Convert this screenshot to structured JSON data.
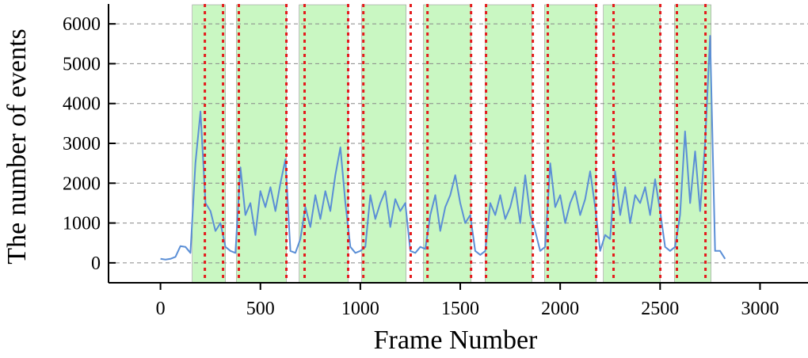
{
  "chart_data": {
    "type": "line",
    "xlabel": "Frame Number",
    "ylabel": "The number of events",
    "x": [
      0,
      25,
      50,
      75,
      100,
      125,
      150,
      175,
      200,
      225,
      250,
      275,
      300,
      325,
      350,
      375,
      400,
      425,
      450,
      475,
      500,
      525,
      550,
      575,
      600,
      625,
      650,
      675,
      700,
      725,
      750,
      775,
      800,
      825,
      850,
      875,
      900,
      925,
      950,
      975,
      1000,
      1025,
      1050,
      1075,
      1100,
      1125,
      1150,
      1175,
      1200,
      1225,
      1250,
      1275,
      1300,
      1325,
      1350,
      1375,
      1400,
      1425,
      1450,
      1475,
      1500,
      1525,
      1550,
      1575,
      1600,
      1625,
      1650,
      1675,
      1700,
      1725,
      1750,
      1775,
      1800,
      1825,
      1850,
      1875,
      1900,
      1925,
      1950,
      1975,
      2000,
      2025,
      2050,
      2075,
      2100,
      2125,
      2150,
      2175,
      2200,
      2225,
      2250,
      2275,
      2300,
      2325,
      2350,
      2375,
      2400,
      2425,
      2450,
      2475,
      2500,
      2525,
      2550,
      2575,
      2600,
      2625,
      2650,
      2675,
      2700,
      2725,
      2750,
      2775,
      2800,
      2825
    ],
    "values": [
      100,
      80,
      100,
      150,
      420,
      400,
      250,
      2500,
      3800,
      1500,
      1300,
      800,
      1000,
      400,
      300,
      250,
      2400,
      1200,
      1500,
      700,
      1800,
      1400,
      1900,
      1300,
      2000,
      2600,
      300,
      250,
      600,
      1400,
      900,
      1700,
      1100,
      1800,
      1300,
      2200,
      2900,
      1500,
      400,
      250,
      300,
      400,
      1700,
      1100,
      1500,
      1800,
      900,
      1600,
      1300,
      1500,
      300,
      250,
      400,
      350,
      1200,
      1700,
      800,
      1400,
      1700,
      2200,
      1500,
      1000,
      1200,
      300,
      200,
      300,
      1500,
      1200,
      1700,
      1100,
      1400,
      1900,
      1000,
      2200,
      1200,
      800,
      300,
      400,
      2500,
      1400,
      1700,
      1000,
      1500,
      1800,
      1200,
      1600,
      2300,
      1400,
      300,
      700,
      600,
      2300,
      1200,
      1900,
      1000,
      1700,
      1500,
      1900,
      1200,
      2100,
      1300,
      400,
      300,
      400,
      1200,
      3300,
      1500,
      2800,
      1300,
      3000,
      5700,
      300,
      300,
      100
    ],
    "color": "#5b8fd6",
    "regions": [
      [
        159,
        325
      ],
      [
        380,
        630
      ],
      [
        694,
        939
      ],
      [
        1007,
        1229
      ],
      [
        1316,
        1554
      ],
      [
        1625,
        1859
      ],
      [
        1922,
        2180
      ],
      [
        2216,
        2501
      ],
      [
        2572,
        2755
      ]
    ],
    "region_color": "#c9f7c2",
    "markers": [
      222,
      313,
      392,
      630,
      721,
      939,
      1015,
      1252,
      1336,
      1554,
      1629,
      1863,
      1938,
      2180,
      2267,
      2501,
      2584,
      2727
    ],
    "marker_color": "#e41a1c",
    "xlim": [
      -260,
      3240
    ],
    "ylim": [
      -500,
      6500
    ],
    "xticks": [
      0,
      500,
      1000,
      1500,
      2000,
      2500,
      3000
    ],
    "yticks": [
      0,
      1000,
      2000,
      3000,
      4000,
      5000,
      6000
    ],
    "grid": true
  }
}
